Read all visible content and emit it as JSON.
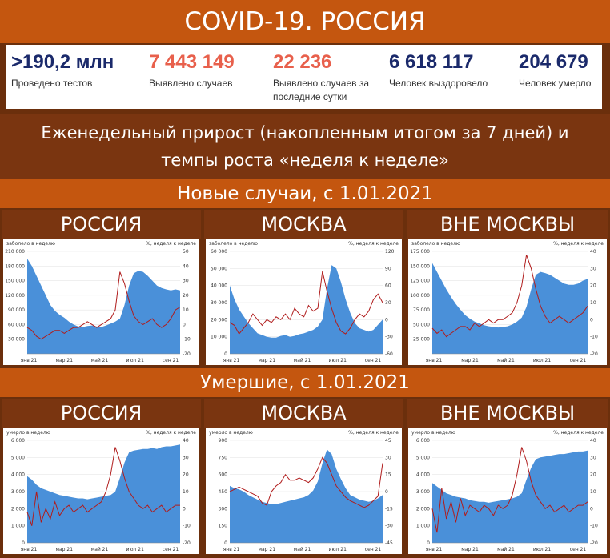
{
  "header": {
    "title": "COVID-19. РОССИЯ"
  },
  "stats": [
    {
      "value": ">190,2 млн",
      "label": "Проведено тестов",
      "color": "#1b2a6b"
    },
    {
      "value": "7 443 149",
      "label": "Выявлено случаев",
      "color": "#e8604c"
    },
    {
      "value": "22 236",
      "label": "Выявлено случаев за последние сутки",
      "color": "#e8604c"
    },
    {
      "value": "6 618 117",
      "label": "Человек выздоровело",
      "color": "#1b2a6b"
    },
    {
      "value": "204 679",
      "label": "Человек умерло",
      "color": "#1b2a6b"
    }
  ],
  "subtitle": "Еженедельный прирост (накопленным итогом за 7 дней) и темпы роста «неделя к неделе»",
  "sections": {
    "cases": "Новые случаи, с 1.01.2021",
    "deaths": "Умершие, с 1.01.2021"
  },
  "regions": [
    "РОССИЯ",
    "МОСКВА",
    "ВНЕ МОСКВЫ",
    "РОССИЯ",
    "МОСКВА",
    "ВНЕ МОСКВЫ"
  ],
  "colors": {
    "area": "#4a90d9",
    "line": "#b01c1c"
  },
  "chart_data": [
    {
      "type": "area",
      "ylabel": "заболело в неделю",
      "y2label": "%, неделя к неделе",
      "xticks": [
        "янв 21",
        "мар 21",
        "май 21",
        "июл 21",
        "сен 21"
      ],
      "yticks": [
        30000,
        60000,
        90000,
        120000,
        150000,
        180000,
        210000
      ],
      "ytick_labels": [
        "30 000",
        "60 000",
        "90 000",
        "120 000",
        "150 000",
        "180 000",
        "210 000"
      ],
      "y2ticks": [
        -20,
        -10,
        0,
        10,
        20,
        30,
        40,
        50
      ],
      "ylim": [
        0,
        210000
      ],
      "y2lim": [
        -20,
        50
      ],
      "series": [
        {
          "type": "area",
          "values": [
            195000,
            180000,
            160000,
            140000,
            120000,
            100000,
            88000,
            80000,
            74000,
            66000,
            60000,
            56000,
            55000,
            57000,
            58000,
            56000,
            55000,
            58000,
            62000,
            66000,
            72000,
            100000,
            140000,
            165000,
            170000,
            168000,
            160000,
            150000,
            140000,
            135000,
            132000,
            130000,
            132000,
            130000
          ]
        },
        {
          "type": "line",
          "values": [
            -2,
            -4,
            -8,
            -10,
            -8,
            -6,
            -4,
            -4,
            -6,
            -4,
            -2,
            -2,
            0,
            2,
            0,
            -2,
            0,
            2,
            4,
            10,
            36,
            28,
            16,
            6,
            2,
            0,
            2,
            4,
            0,
            -2,
            0,
            4,
            10,
            12
          ]
        }
      ]
    },
    {
      "type": "area",
      "ylabel": "заболело в неделю",
      "y2label": "%, неделя к неделе",
      "xticks": [
        "янв 21",
        "мар 21",
        "май 21",
        "июл 21",
        "сен 21"
      ],
      "yticks": [
        0,
        10000,
        20000,
        30000,
        40000,
        50000,
        60000
      ],
      "ytick_labels": [
        "0",
        "10 000",
        "20 000",
        "30 000",
        "40 000",
        "50 000",
        "60 000"
      ],
      "y2ticks": [
        -60,
        -30,
        0,
        30,
        60,
        90,
        120
      ],
      "ylim": [
        0,
        60000
      ],
      "y2lim": [
        -60,
        120
      ],
      "series": [
        {
          "type": "area",
          "values": [
            40000,
            32000,
            26000,
            22000,
            18000,
            15000,
            12000,
            11000,
            10000,
            9500,
            9500,
            10500,
            11000,
            10000,
            10500,
            11500,
            12000,
            13000,
            14000,
            16000,
            20000,
            38000,
            52000,
            50000,
            42000,
            32000,
            24000,
            18000,
            15000,
            14000,
            13000,
            14000,
            17000,
            20000
          ]
        },
        {
          "type": "line",
          "values": [
            -5,
            -10,
            -25,
            -15,
            -5,
            10,
            0,
            -10,
            0,
            -5,
            5,
            0,
            10,
            0,
            20,
            10,
            5,
            25,
            15,
            20,
            85,
            50,
            20,
            -5,
            -20,
            -25,
            -15,
            0,
            10,
            5,
            15,
            35,
            45,
            30
          ]
        }
      ]
    },
    {
      "type": "area",
      "ylabel": "заболело в неделю",
      "y2label": "%, неделя к неделе",
      "xticks": [
        "янв 21",
        "мар 21",
        "май 21",
        "июл 21",
        "сен 21"
      ],
      "yticks": [
        25000,
        50000,
        75000,
        100000,
        125000,
        150000,
        175000
      ],
      "ytick_labels": [
        "25 000",
        "50 000",
        "75 000",
        "100 000",
        "125 000",
        "150 000",
        "175 000"
      ],
      "y2ticks": [
        -20,
        -10,
        0,
        10,
        20,
        30,
        40
      ],
      "ylim": [
        0,
        175000
      ],
      "y2lim": [
        -20,
        40
      ],
      "series": [
        {
          "type": "area",
          "values": [
            155000,
            140000,
            125000,
            110000,
            97000,
            85000,
            75000,
            66000,
            60000,
            55000,
            52000,
            49000,
            47000,
            46000,
            45000,
            46000,
            47000,
            50000,
            55000,
            62000,
            80000,
            110000,
            135000,
            140000,
            138000,
            135000,
            130000,
            125000,
            120000,
            118000,
            118000,
            120000,
            125000,
            128000
          ]
        },
        {
          "type": "line",
          "values": [
            -5,
            -8,
            -6,
            -10,
            -8,
            -6,
            -4,
            -4,
            -6,
            -2,
            -4,
            -2,
            0,
            -2,
            0,
            0,
            2,
            4,
            10,
            20,
            38,
            30,
            18,
            8,
            2,
            -2,
            0,
            2,
            0,
            -2,
            0,
            2,
            4,
            8
          ]
        }
      ]
    },
    {
      "type": "area",
      "ylabel": "умерло в неделю",
      "y2label": "%, неделя к неделе",
      "xticks": [
        "янв 21",
        "мар 21",
        "май 21",
        "июл 21",
        "сен 21"
      ],
      "yticks": [
        0,
        1000,
        2000,
        3000,
        4000,
        5000,
        6000
      ],
      "ytick_labels": [
        "0",
        "1 000",
        "2 000",
        "3 000",
        "4 000",
        "5 000",
        "6 000"
      ],
      "y2ticks": [
        -20,
        -10,
        0,
        10,
        20,
        30,
        40
      ],
      "ylim": [
        0,
        6000
      ],
      "y2lim": [
        -20,
        40
      ],
      "series": [
        {
          "type": "area",
          "values": [
            3900,
            3700,
            3400,
            3200,
            3100,
            3000,
            2900,
            2800,
            2750,
            2700,
            2650,
            2600,
            2600,
            2550,
            2600,
            2650,
            2700,
            2750,
            2800,
            3000,
            3800,
            4700,
            5300,
            5400,
            5450,
            5500,
            5500,
            5550,
            5500,
            5600,
            5650,
            5650,
            5700,
            5750
          ]
        },
        {
          "type": "line",
          "values": [
            -2,
            -10,
            10,
            -8,
            0,
            -6,
            4,
            -4,
            0,
            2,
            -2,
            0,
            2,
            -2,
            0,
            2,
            4,
            10,
            20,
            36,
            28,
            18,
            10,
            6,
            2,
            0,
            2,
            -2,
            0,
            2,
            -2,
            0,
            2,
            2
          ]
        }
      ]
    },
    {
      "type": "area",
      "ylabel": "умерло в неделю",
      "y2label": "%, неделя к неделе",
      "xticks": [
        "янв 21",
        "мар 21",
        "май 21",
        "июл 21",
        "сен 21"
      ],
      "yticks": [
        0,
        150,
        300,
        450,
        600,
        750,
        900
      ],
      "ytick_labels": [
        "0",
        "150",
        "300",
        "450",
        "600",
        "750",
        "900"
      ],
      "y2ticks": [
        -45,
        -30,
        -15,
        0,
        15,
        30,
        45
      ],
      "ylim": [
        0,
        900
      ],
      "y2lim": [
        -45,
        45
      ],
      "series": [
        {
          "type": "area",
          "values": [
            500,
            480,
            470,
            450,
            420,
            400,
            380,
            360,
            350,
            340,
            340,
            350,
            360,
            370,
            380,
            390,
            400,
            420,
            460,
            540,
            700,
            820,
            780,
            650,
            560,
            480,
            420,
            400,
            380,
            370,
            360,
            370,
            390,
            420
          ]
        },
        {
          "type": "line",
          "values": [
            0,
            2,
            4,
            2,
            0,
            -2,
            -4,
            -10,
            -12,
            0,
            5,
            8,
            15,
            10,
            10,
            12,
            10,
            8,
            12,
            20,
            30,
            25,
            15,
            5,
            0,
            -5,
            -8,
            -10,
            -12,
            -14,
            -12,
            -8,
            -4,
            25
          ]
        }
      ]
    },
    {
      "type": "area",
      "ylabel": "умерло в неделю",
      "y2label": "%, неделя к неделе",
      "xticks": [
        "янв 21",
        "мар 21",
        "май 21",
        "июл 21",
        "сен 21"
      ],
      "yticks": [
        0,
        1000,
        2000,
        3000,
        4000,
        5000,
        6000
      ],
      "ytick_labels": [
        "0",
        "1 000",
        "2 000",
        "3 000",
        "4 000",
        "5 000",
        "6 000"
      ],
      "y2ticks": [
        -20,
        -10,
        0,
        10,
        20,
        30,
        40
      ],
      "ylim": [
        0,
        6000
      ],
      "y2lim": [
        -20,
        40
      ],
      "series": [
        {
          "type": "area",
          "values": [
            3500,
            3300,
            3100,
            2900,
            2800,
            2700,
            2650,
            2600,
            2500,
            2450,
            2400,
            2400,
            2350,
            2400,
            2450,
            2500,
            2550,
            2600,
            2700,
            2900,
            3700,
            4400,
            4900,
            5000,
            5050,
            5100,
            5150,
            5200,
            5200,
            5250,
            5300,
            5350,
            5350,
            5400
          ]
        },
        {
          "type": "line",
          "values": [
            0,
            -14,
            12,
            -6,
            4,
            -8,
            6,
            -4,
            2,
            0,
            -2,
            2,
            0,
            -4,
            2,
            0,
            2,
            8,
            20,
            36,
            28,
            16,
            8,
            4,
            0,
            2,
            -2,
            0,
            2,
            -2,
            0,
            2,
            2,
            4
          ]
        }
      ]
    }
  ]
}
